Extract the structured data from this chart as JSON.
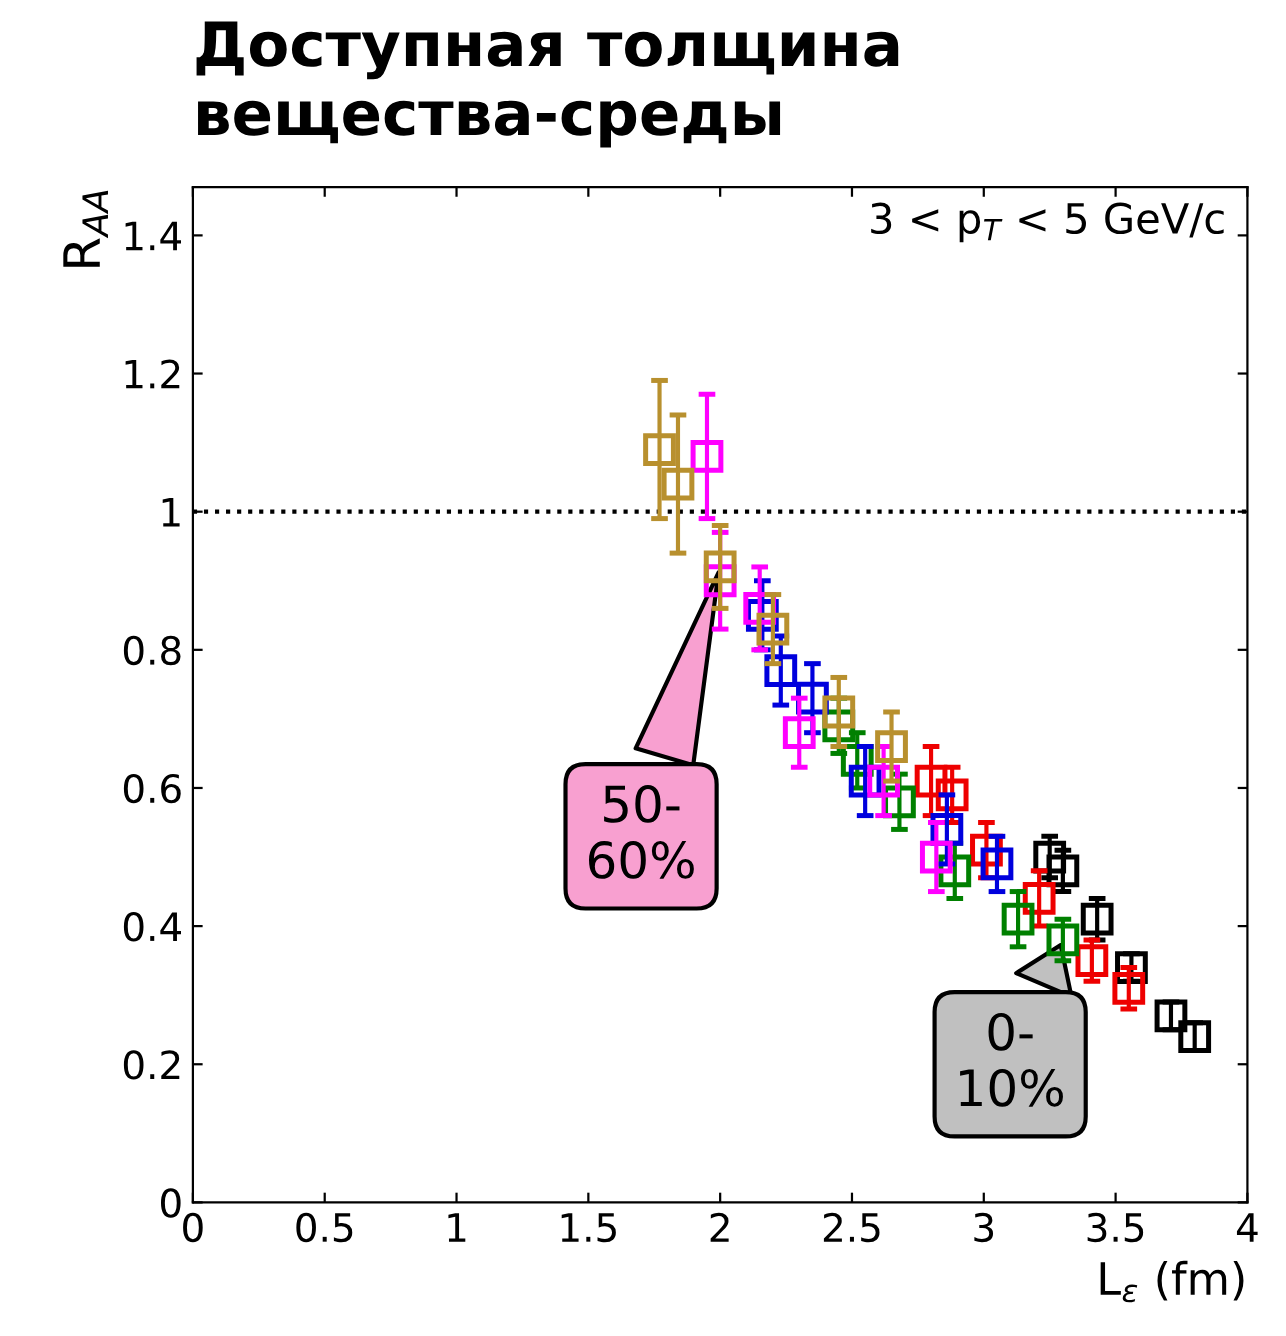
{
  "chart_data": {
    "type": "scatter",
    "title": "Доступная толщина вещества-среды",
    "xlabel": "L$_{ε}$ (fm)",
    "ylabel": "R$_{AA}$",
    "annotations": [
      "3 < p$_{T}$ < 5 GeV/c",
      {
        "text": "50-\n60%",
        "x": 2.0,
        "y": 0.92
      },
      {
        "text": "0-\n10%",
        "x": 3.3,
        "y": 0.38
      }
    ],
    "xlim": [
      0,
      4
    ],
    "ylim": [
      0,
      1.47
    ],
    "xticks": [
      0,
      0.5,
      1,
      1.5,
      2,
      2.5,
      3,
      3.5,
      4
    ],
    "yticks": [
      0,
      0.2,
      0.4,
      0.6,
      0.8,
      1,
      1.2,
      1.4
    ],
    "marker": "square",
    "grid": false,
    "legend": false,
    "ref_lines": [
      {
        "axis": "y",
        "value": 1,
        "line_style": "dotted",
        "color": "#000000"
      }
    ],
    "series": [
      {
        "color": "#b8902e",
        "x": [
          1.77,
          1.84,
          2.0,
          2.2,
          2.45,
          2.65
        ],
        "values": [
          1.09,
          1.04,
          0.92,
          0.83,
          0.71,
          0.66
        ],
        "errors": [
          0.1,
          0.1,
          0.06,
          0.05,
          0.05,
          0.05
        ]
      },
      {
        "color": "#ff00ff",
        "x": [
          1.95,
          2.0,
          2.15,
          2.3,
          2.62,
          2.82
        ],
        "values": [
          1.08,
          0.9,
          0.86,
          0.68,
          0.61,
          0.5
        ],
        "errors": [
          0.09,
          0.07,
          0.06,
          0.05,
          0.05,
          0.05
        ]
      },
      {
        "color": "#0000dd",
        "x": [
          2.16,
          2.23,
          2.35,
          2.55,
          2.86,
          3.05
        ],
        "values": [
          0.85,
          0.77,
          0.73,
          0.61,
          0.54,
          0.49
        ],
        "errors": [
          0.05,
          0.05,
          0.05,
          0.05,
          0.05,
          0.04
        ]
      },
      {
        "color": "#008000",
        "x": [
          2.45,
          2.52,
          2.68,
          2.89,
          3.13,
          3.3
        ],
        "values": [
          0.69,
          0.64,
          0.58,
          0.48,
          0.41,
          0.38
        ],
        "errors": [
          0.04,
          0.04,
          0.04,
          0.04,
          0.04,
          0.03
        ]
      },
      {
        "color": "#ee0000",
        "x": [
          2.8,
          2.88,
          3.01,
          3.21,
          3.41,
          3.55
        ],
        "values": [
          0.61,
          0.59,
          0.51,
          0.44,
          0.35,
          0.31
        ],
        "errors": [
          0.05,
          0.04,
          0.04,
          0.04,
          0.03,
          0.03
        ]
      },
      {
        "color": "#000000",
        "x": [
          3.25,
          3.3,
          3.43,
          3.56,
          3.71,
          3.8
        ],
        "values": [
          0.5,
          0.48,
          0.41,
          0.34,
          0.27,
          0.24
        ],
        "errors": [
          0.03,
          0.03,
          0.03,
          0.02,
          0.02,
          0.02
        ]
      }
    ]
  }
}
